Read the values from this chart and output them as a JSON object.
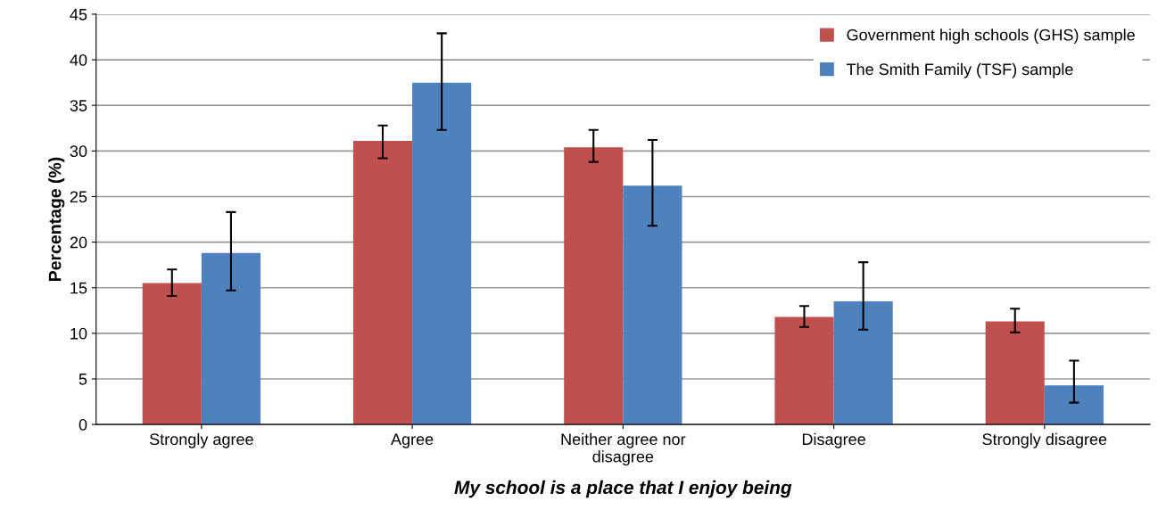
{
  "chart_data": {
    "type": "bar",
    "xlabel": "My school is a place that I enjoy being",
    "ylabel": "Percentage (%)",
    "categories": [
      "Strongly agree",
      "Agree",
      "Neither agree nor\ndisagree",
      "Disagree",
      "Strongly disagree"
    ],
    "series": [
      {
        "name": "Government high schools (GHS) sample",
        "color": "#c0504d",
        "values": [
          15.5,
          31.1,
          30.4,
          11.8,
          11.3
        ],
        "errors": [
          [
            14.1,
            17.0
          ],
          [
            29.2,
            32.8
          ],
          [
            28.8,
            32.3
          ],
          [
            10.7,
            13.0
          ],
          [
            10.1,
            12.7
          ]
        ]
      },
      {
        "name": "The Smith Family (TSF) sample",
        "color": "#4f81bd",
        "values": [
          18.8,
          37.5,
          26.2,
          13.5,
          4.3
        ],
        "errors": [
          [
            14.7,
            23.3
          ],
          [
            32.3,
            42.9
          ],
          [
            21.8,
            31.2
          ],
          [
            10.4,
            17.8
          ],
          [
            2.4,
            7.0
          ]
        ]
      }
    ],
    "ylim": [
      0,
      45
    ],
    "yticks": [
      0,
      5,
      10,
      15,
      20,
      25,
      30,
      35,
      40,
      45
    ],
    "grid": "y",
    "legend": "top right"
  }
}
